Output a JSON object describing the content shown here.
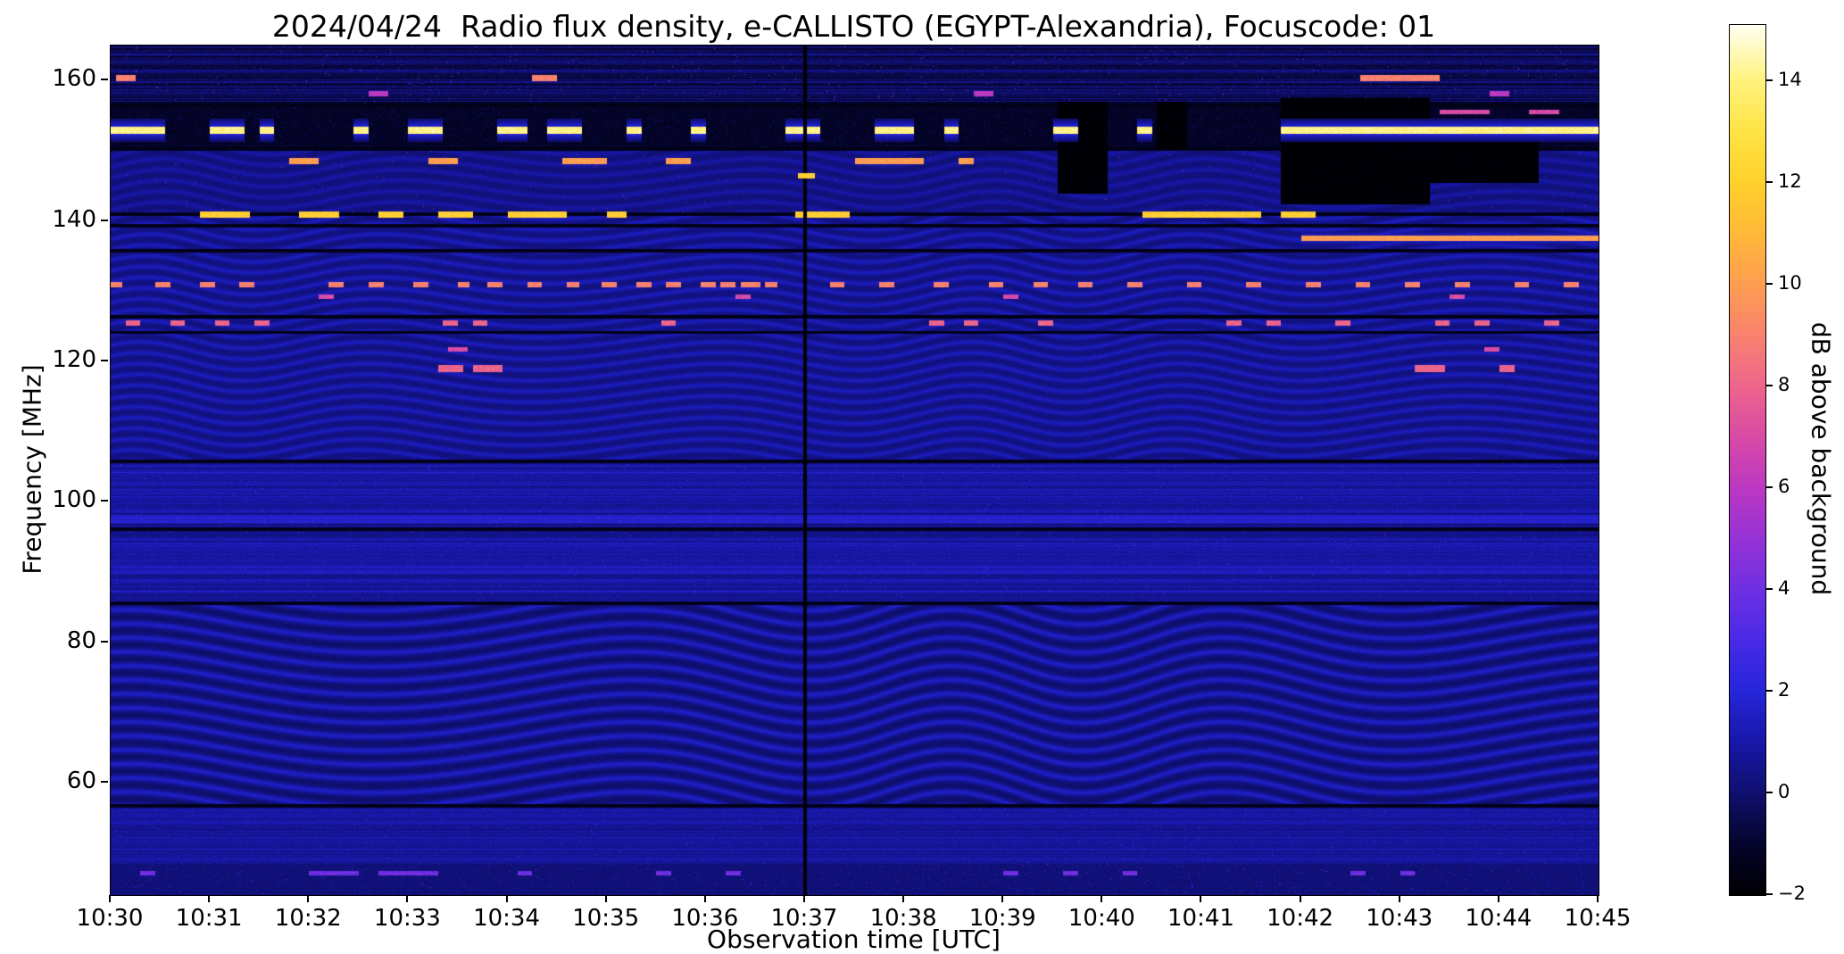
{
  "chart_data": {
    "type": "heatmap",
    "title": "2024/04/24  Radio flux density, e-CALLISTO (EGYPT-Alexandria), Focuscode: 01",
    "xlabel": "Observation time [UTC]",
    "ylabel": "Frequency [MHz]",
    "x_ticks": [
      "10:30",
      "10:31",
      "10:32",
      "10:33",
      "10:34",
      "10:35",
      "10:36",
      "10:37",
      "10:38",
      "10:39",
      "10:40",
      "10:41",
      "10:42",
      "10:43",
      "10:44",
      "10:45"
    ],
    "x_range_minutes": [
      0,
      15
    ],
    "y_ticks": [
      160,
      140,
      120,
      100,
      80,
      60
    ],
    "freq_range_mhz": [
      44,
      165
    ],
    "grid": false,
    "colorbar": {
      "label": "dB above background",
      "ticks": [
        -2,
        0,
        2,
        4,
        6,
        8,
        10,
        12,
        14
      ],
      "vmin": -2,
      "vmax": 15.1
    },
    "colormap_stops": [
      [
        -2,
        "#000003"
      ],
      [
        -1,
        "#06052e"
      ],
      [
        0,
        "#101070"
      ],
      [
        1,
        "#1818aa"
      ],
      [
        2,
        "#2726da"
      ],
      [
        3,
        "#4a2ae8"
      ],
      [
        4,
        "#6f30e2"
      ],
      [
        5,
        "#9633d6"
      ],
      [
        6,
        "#bd38c2"
      ],
      [
        7,
        "#d94ba6"
      ],
      [
        8,
        "#ee668c"
      ],
      [
        9,
        "#fa8370"
      ],
      [
        10,
        "#ff9e51"
      ],
      [
        11,
        "#ffb93a"
      ],
      [
        12,
        "#ffd12b"
      ],
      [
        13,
        "#ffe446"
      ],
      [
        14,
        "#fff37e"
      ],
      [
        15.1,
        "#fffff2"
      ]
    ],
    "vertical_gap_minute": 7.0,
    "noise_bands": [
      {
        "f_lo": 157.0,
        "f_hi": 165.0,
        "style": "dark_stripes"
      },
      {
        "f_lo": 150.4,
        "f_hi": 157.0,
        "style": "black_band"
      },
      {
        "f_lo": 141.2,
        "f_hi": 150.4,
        "style": "faint_waves"
      },
      {
        "f_lo": 105.8,
        "f_hi": 141.2,
        "style": "waves"
      },
      {
        "f_lo": 85.5,
        "f_hi": 105.8,
        "style": "fine_stripes"
      },
      {
        "f_lo": 57.0,
        "f_hi": 85.5,
        "style": "big_waves"
      },
      {
        "f_lo": 48.5,
        "f_hi": 57.0,
        "style": "fine_stripes"
      },
      {
        "f_lo": 44.0,
        "f_hi": 48.5,
        "style": "dark_speckle"
      }
    ],
    "bright_lines": [
      {
        "f": 97.6,
        "w": 0.5,
        "add": 1.1
      },
      {
        "f": 90.4,
        "w": 0.4,
        "add": 0.5
      }
    ],
    "dark_lines": [
      156.5,
      150.3,
      141.0,
      139.4,
      135.8,
      126.4,
      124.2,
      105.8,
      96.2,
      85.6,
      56.8
    ],
    "gaps": [
      [
        9.55,
        10.05,
        144.0,
        157.0
      ],
      [
        10.55,
        10.85,
        150.4,
        157.0
      ],
      [
        11.8,
        13.3,
        142.5,
        157.5
      ],
      [
        13.3,
        14.4,
        145.5,
        152.5
      ]
    ],
    "rfi": [
      {
        "f": 160.4,
        "w": 0.8,
        "level": 9,
        "seg": [
          [
            0.05,
            0.25
          ],
          [
            4.25,
            4.5
          ],
          [
            12.6,
            13.4
          ]
        ]
      },
      {
        "f": 158.2,
        "w": 0.6,
        "level": 6,
        "seg": [
          [
            2.6,
            2.8
          ],
          [
            8.7,
            8.9
          ],
          [
            13.9,
            14.1
          ]
        ]
      },
      {
        "f": 153.0,
        "w": 0.9,
        "level": 14,
        "halo": 1.6,
        "seg": [
          [
            0.0,
            0.55
          ],
          [
            1.0,
            1.35
          ],
          [
            1.5,
            1.65
          ],
          [
            2.45,
            2.6
          ],
          [
            3.0,
            3.35
          ],
          [
            3.9,
            4.2
          ],
          [
            4.4,
            4.75
          ],
          [
            5.2,
            5.35
          ],
          [
            5.85,
            6.0
          ],
          [
            6.8,
            7.15
          ],
          [
            7.7,
            8.1
          ],
          [
            8.4,
            8.55
          ],
          [
            9.5,
            9.75
          ],
          [
            10.35,
            10.5
          ],
          [
            11.8,
            15.0
          ]
        ]
      },
      {
        "f": 155.6,
        "w": 0.6,
        "level": 7,
        "seg": [
          [
            13.4,
            13.9
          ],
          [
            14.3,
            14.6
          ]
        ]
      },
      {
        "f": 148.6,
        "w": 0.7,
        "level": 10,
        "seg": [
          [
            1.8,
            2.1
          ],
          [
            3.2,
            3.5
          ],
          [
            4.55,
            5.0
          ],
          [
            5.6,
            5.85
          ],
          [
            7.5,
            8.2
          ],
          [
            8.55,
            8.7
          ]
        ]
      },
      {
        "f": 146.5,
        "w": 0.6,
        "level": 12,
        "z": 2,
        "seg": [
          [
            6.93,
            7.1
          ]
        ]
      },
      {
        "f": 141.0,
        "w": 0.7,
        "level": 12,
        "seg": [
          [
            0.9,
            1.4
          ],
          [
            1.9,
            2.3
          ],
          [
            2.7,
            2.95
          ],
          [
            3.3,
            3.65
          ],
          [
            4.0,
            4.6
          ],
          [
            5.0,
            5.2
          ],
          [
            6.9,
            7.45
          ],
          [
            10.4,
            11.6
          ],
          [
            11.8,
            12.15
          ]
        ]
      },
      {
        "f": 137.6,
        "w": 0.6,
        "level": 10,
        "halo": 1.2,
        "seg": [
          [
            12.0,
            15.0
          ]
        ]
      },
      {
        "f": 131.0,
        "w": 0.55,
        "level": 9,
        "seg": [
          [
            0.0,
            0.12
          ],
          [
            0.45,
            0.6
          ],
          [
            0.9,
            1.05
          ],
          [
            1.3,
            1.45
          ],
          [
            2.2,
            2.35
          ],
          [
            2.6,
            2.75
          ],
          [
            3.05,
            3.2
          ],
          [
            3.5,
            3.62
          ],
          [
            3.8,
            3.95
          ],
          [
            4.2,
            4.35
          ],
          [
            4.6,
            4.72
          ],
          [
            4.95,
            5.1
          ],
          [
            5.3,
            5.45
          ],
          [
            5.6,
            5.75
          ],
          [
            5.95,
            6.1
          ],
          [
            6.15,
            6.3
          ],
          [
            6.35,
            6.55
          ],
          [
            6.6,
            6.72
          ],
          [
            7.25,
            7.4
          ],
          [
            7.75,
            7.9
          ],
          [
            8.3,
            8.45
          ],
          [
            8.85,
            9.0
          ],
          [
            9.3,
            9.45
          ],
          [
            9.75,
            9.9
          ],
          [
            10.25,
            10.4
          ],
          [
            10.85,
            11.0
          ],
          [
            11.45,
            11.6
          ],
          [
            12.05,
            12.2
          ],
          [
            12.55,
            12.7
          ],
          [
            13.05,
            13.2
          ],
          [
            13.55,
            13.7
          ],
          [
            14.15,
            14.3
          ],
          [
            14.65,
            14.8
          ]
        ]
      },
      {
        "f": 129.3,
        "w": 0.5,
        "level": 7,
        "seg": [
          [
            2.1,
            2.25
          ],
          [
            6.3,
            6.45
          ],
          [
            9.0,
            9.15
          ],
          [
            13.5,
            13.65
          ]
        ]
      },
      {
        "f": 125.5,
        "w": 0.6,
        "level": 8,
        "seg": [
          [
            0.15,
            0.3
          ],
          [
            0.6,
            0.75
          ],
          [
            1.05,
            1.2
          ],
          [
            1.45,
            1.6
          ],
          [
            3.35,
            3.5
          ],
          [
            3.65,
            3.8
          ],
          [
            5.55,
            5.7
          ],
          [
            8.25,
            8.4
          ],
          [
            8.6,
            8.75
          ],
          [
            9.35,
            9.5
          ],
          [
            11.25,
            11.4
          ],
          [
            11.65,
            11.8
          ],
          [
            12.35,
            12.5
          ],
          [
            13.35,
            13.5
          ],
          [
            13.75,
            13.9
          ],
          [
            14.45,
            14.6
          ]
        ]
      },
      {
        "f": 121.8,
        "w": 0.6,
        "level": 7,
        "seg": [
          [
            3.4,
            3.6
          ],
          [
            13.85,
            14.0
          ]
        ]
      },
      {
        "f": 119.0,
        "w": 0.9,
        "level": 8,
        "seg": [
          [
            3.3,
            3.55
          ],
          [
            3.65,
            3.95
          ],
          [
            13.15,
            13.45
          ],
          [
            14.0,
            14.15
          ]
        ]
      },
      {
        "f": 47.2,
        "w": 0.5,
        "level": 4,
        "seg": [
          [
            0.3,
            0.45
          ],
          [
            2.0,
            2.5
          ],
          [
            2.7,
            3.3
          ],
          [
            4.1,
            4.25
          ],
          [
            5.5,
            5.65
          ],
          [
            6.2,
            6.35
          ],
          [
            9.0,
            9.15
          ],
          [
            9.6,
            9.75
          ],
          [
            10.2,
            10.35
          ],
          [
            12.5,
            12.65
          ],
          [
            13.0,
            13.15
          ]
        ]
      }
    ]
  }
}
